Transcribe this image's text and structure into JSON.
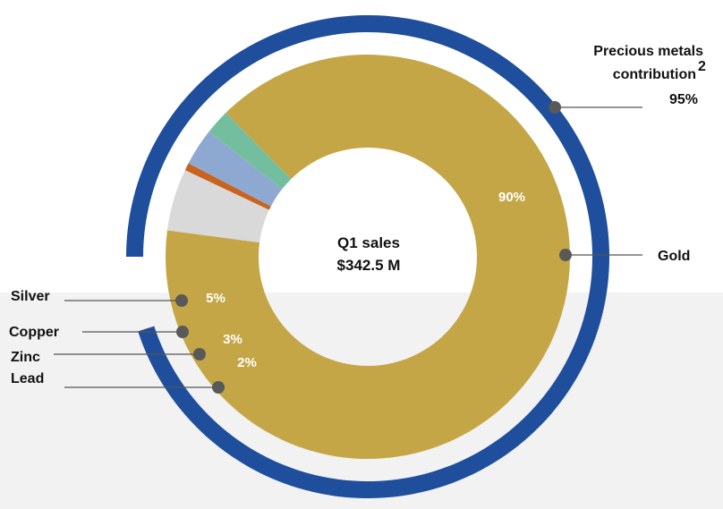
{
  "chart_data": {
    "type": "pie",
    "title": "",
    "center_label": {
      "line1": "Q1 sales",
      "line2": "$342.5 M"
    },
    "slices": [
      {
        "name": "Gold",
        "value": 90,
        "label": "90%",
        "color": "#c5a647"
      },
      {
        "name": "Silver",
        "value": 5,
        "label": "5%",
        "color": "#d9d9d9"
      },
      {
        "name": "Copper",
        "value": 0.6,
        "label": "",
        "color": "#c8641f"
      },
      {
        "name": "Zinc",
        "value": 3,
        "label": "3%",
        "color": "#8ea9d1"
      },
      {
        "name": "Lead",
        "value": 2,
        "label": "2%",
        "color": "#74bea0"
      }
    ],
    "outer_ring": {
      "name": "Precious metals contribution",
      "superscript": "2",
      "value": 95,
      "label": "95%",
      "color": "#1f4e9c"
    }
  },
  "labels": {
    "gold": "Gold",
    "silver": "Silver",
    "copper": "Copper",
    "zinc": "Zinc",
    "lead": "Lead",
    "precious_line1": "Precious metals",
    "precious_line2": "contribution",
    "precious_sup": "2",
    "precious_value": "95%"
  }
}
